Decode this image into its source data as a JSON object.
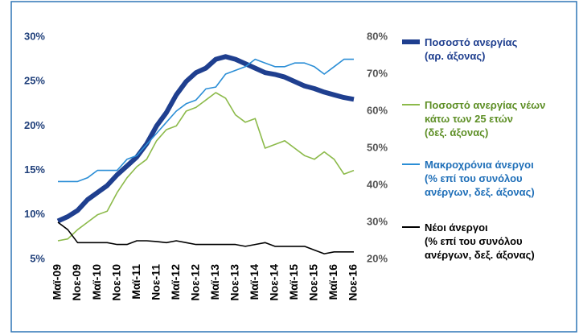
{
  "chart_data": {
    "type": "line",
    "categories": [
      "Μαϊ-09",
      null,
      "Νοε-09",
      null,
      "Μαϊ-10",
      null,
      "Νοε-10",
      null,
      "Μαϊ-11",
      null,
      "Νοε-11",
      null,
      "Μαϊ-12",
      null,
      "Νοε-12",
      null,
      "Μαϊ-13",
      null,
      "Νοε-13",
      null,
      "Μαϊ-14",
      null,
      "Νοε-14",
      null,
      "Μαϊ-15",
      null,
      "Νοε-15",
      null,
      "Μαϊ-16",
      null,
      "Νοε-16"
    ],
    "series": [
      {
        "name": "Ποσοστό ανεργίας\n(αρ. άξονας)",
        "color": "#1f3f8f",
        "axis": "y",
        "values": [
          9.3,
          9.8,
          10.5,
          11.7,
          12.5,
          13.3,
          14.5,
          15.5,
          16.5,
          18.0,
          20.0,
          21.5,
          23.5,
          25.0,
          26.0,
          26.5,
          27.5,
          27.8,
          27.5,
          27.0,
          26.5,
          26.0,
          25.8,
          25.5,
          25.0,
          24.5,
          24.2,
          23.8,
          23.5,
          23.2,
          23.0
        ]
      },
      {
        "name": "Ποσοστό ανεργίας νέων\nκάτω των 25 ετών\n(δεξ. άξονας)",
        "color": "#8cba4a",
        "axis": "y2",
        "values": [
          25,
          25.5,
          28,
          30,
          32,
          33,
          38,
          42,
          45,
          47,
          52,
          55,
          56,
          60,
          61,
          63,
          65,
          63.5,
          59,
          57,
          58,
          50,
          51,
          52,
          50,
          48,
          47,
          49,
          47,
          43,
          44
        ]
      },
      {
        "name": "Μακροχρόνια άνεργοι\n(% επί του συνόλου\nανέργων, δεξ. άξονας)",
        "color": "#2b8ed6",
        "axis": "y2",
        "values": [
          41,
          41,
          41,
          42,
          44,
          44,
          44,
          47,
          48,
          51,
          54,
          57,
          60,
          62,
          63,
          66,
          66.5,
          70,
          71,
          72,
          74,
          73,
          72,
          72,
          73,
          73,
          72,
          70,
          72,
          74,
          74
        ]
      },
      {
        "name": "Νέοι άνεργοι\n(% επί του συνόλου\nανέργων, δεξ. άξονας)",
        "color": "#000000",
        "axis": "y2",
        "values": [
          30,
          28,
          24.5,
          24.5,
          24.5,
          24.5,
          24,
          24,
          25,
          25,
          24.8,
          24.5,
          25,
          24.5,
          24,
          24,
          24,
          24,
          24,
          23.5,
          24,
          24.5,
          23.5,
          23.5,
          23.5,
          23.5,
          22.5,
          21.5,
          22,
          22,
          22
        ]
      }
    ],
    "ylim": [
      5,
      30
    ],
    "yticks": [
      {
        "value": 5,
        "label": "5%"
      },
      {
        "value": 10,
        "label": "10%"
      },
      {
        "value": 15,
        "label": "15%"
      },
      {
        "value": 20,
        "label": "20%"
      },
      {
        "value": 25,
        "label": "25%"
      },
      {
        "value": 30,
        "label": "30%"
      }
    ],
    "y2lim": [
      20,
      80
    ],
    "y2ticks": [
      {
        "value": 20,
        "label": "20%"
      },
      {
        "value": 30,
        "label": "30%"
      },
      {
        "value": 40,
        "label": "40%"
      },
      {
        "value": 50,
        "label": "50%"
      },
      {
        "value": 60,
        "label": "60%"
      },
      {
        "value": 70,
        "label": "70%"
      },
      {
        "value": 80,
        "label": "80%"
      }
    ],
    "grid": false,
    "legend": "right"
  }
}
